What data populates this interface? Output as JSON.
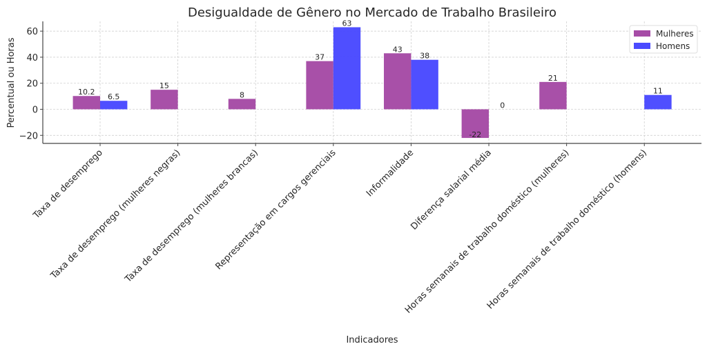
{
  "chart_data": {
    "type": "bar",
    "title": "Desigualdade de Gênero no Mercado de Trabalho Brasileiro",
    "xlabel": "Indicadores",
    "ylabel": "Percentual ou Horas",
    "categories": [
      "Taxa de desemprego",
      "Taxa de desemprego (mulheres negras)",
      "Taxa de desemprego (mulheres brancas)",
      "Representação em cargos gerenciais",
      "Informalidade",
      "Diferença salarial média",
      "Horas semanais de trabalho doméstico (mulheres)",
      "Horas semanais de trabalho doméstico (homens)"
    ],
    "series": [
      {
        "name": "Mulheres",
        "color": "#a64ca6",
        "values": [
          10.2,
          15,
          8,
          37,
          43,
          -22,
          21,
          null
        ],
        "labels": [
          "10.2",
          "15",
          "8",
          "37",
          "43",
          "-22",
          "21",
          null
        ]
      },
      {
        "name": "Homens",
        "color": "#4b4bff",
        "values": [
          6.5,
          null,
          null,
          63,
          38,
          0,
          null,
          11
        ],
        "labels": [
          "6.5",
          null,
          null,
          "63",
          "38",
          "0",
          null,
          "11"
        ]
      }
    ],
    "ylim": [
      -26.2,
      67.5
    ],
    "yticks": [
      -20,
      0,
      20,
      40,
      60
    ],
    "ytick_labels": [
      "−20",
      "0",
      "20",
      "40",
      "60"
    ],
    "grid": true,
    "legend": "top-right"
  }
}
